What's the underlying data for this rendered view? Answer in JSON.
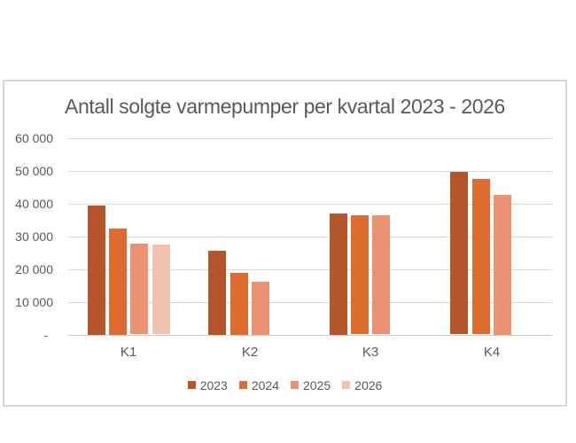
{
  "page": {
    "background": "#FFFFFF"
  },
  "chart": {
    "background": "#FFFFFF",
    "border_color": "#D8D8D8",
    "gridline_color": "#DADADA",
    "axis_line_color": "#CBCBCB",
    "text_color": "#595959"
  },
  "chart_data": {
    "type": "bar",
    "title": "Antall solgte varmepumper per kvartal 2023 - 2026",
    "xlabel": "",
    "ylabel": "",
    "categories": [
      "K1",
      "K2",
      "K3",
      "K4"
    ],
    "series": [
      {
        "name": "2023",
        "color": "#B4562A",
        "values": [
          39400,
          25600,
          37000,
          49500
        ]
      },
      {
        "name": "2024",
        "color": "#DC6C2F",
        "values": [
          32300,
          18900,
          36300,
          47300
        ]
      },
      {
        "name": "2025",
        "color": "#EB9273",
        "values": [
          27700,
          16100,
          36300,
          42700
        ]
      },
      {
        "name": "2026",
        "color": "#F2C2B1",
        "values": [
          27300,
          null,
          null,
          null
        ]
      }
    ],
    "ylim": [
      0,
      60000
    ],
    "ytick_values": [
      0,
      10000,
      20000,
      30000,
      40000,
      50000,
      60000
    ],
    "ytick_labels": [
      "-",
      "10 000",
      "20 000",
      "30 000",
      "40 000",
      "50 000",
      "60 000"
    ],
    "grid": "horizontal",
    "legend_position": "bottom",
    "legend_entries": [
      "2023",
      "2024",
      "2025",
      "2026"
    ]
  }
}
